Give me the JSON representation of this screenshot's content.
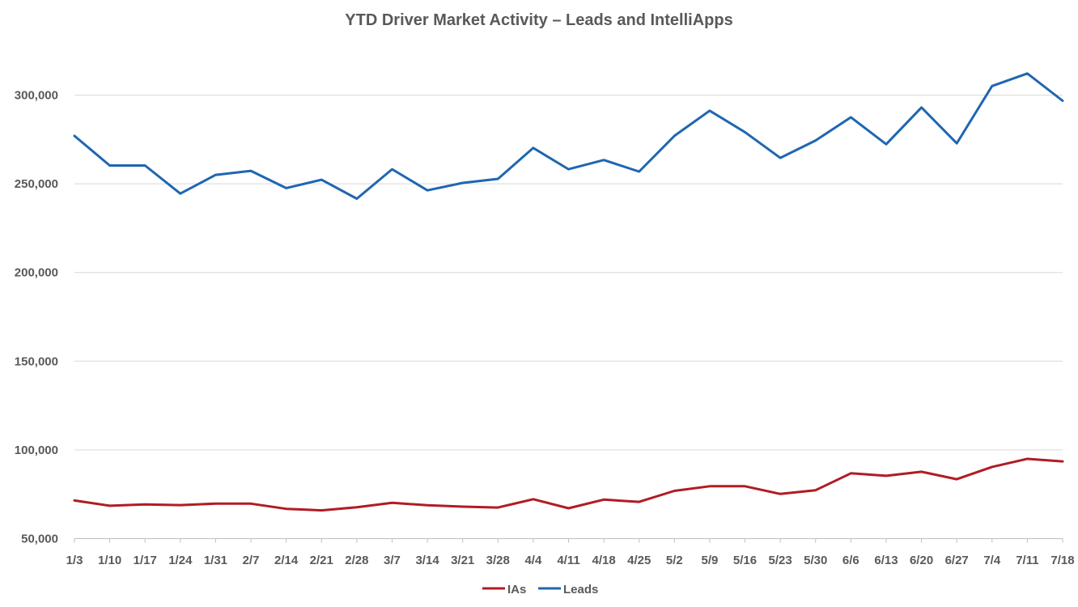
{
  "chart_data": {
    "type": "line",
    "title": "YTD Driver Market Activity – Leads and IntelliApps",
    "xlabel": "",
    "ylabel": "",
    "ylim": [
      50000,
      325000
    ],
    "yticks": [
      50000,
      100000,
      150000,
      200000,
      250000,
      300000
    ],
    "ytick_labels": [
      "50,000",
      "100,000",
      "150,000",
      "200,000",
      "250,000",
      "300,000"
    ],
    "grid": "horizontal",
    "legend_position": "bottom",
    "categories": [
      "1/3",
      "1/10",
      "1/17",
      "1/24",
      "1/31",
      "2/7",
      "2/14",
      "2/21",
      "2/28",
      "3/7",
      "3/14",
      "3/21",
      "3/28",
      "4/4",
      "4/11",
      "4/18",
      "4/25",
      "5/2",
      "5/9",
      "5/16",
      "5/23",
      "5/30",
      "6/6",
      "6/13",
      "6/20",
      "6/27",
      "7/4",
      "7/11",
      "7/18"
    ],
    "series": [
      {
        "name": "IAs",
        "color": "#b01c23",
        "values": [
          71500,
          68500,
          69300,
          68900,
          69700,
          69700,
          66800,
          65900,
          67700,
          70200,
          68800,
          68000,
          67500,
          72200,
          67100,
          72000,
          70700,
          76900,
          79500,
          79500,
          75200,
          77300,
          86800,
          85400,
          87700,
          83500,
          90400,
          95000,
          93500
        ]
      },
      {
        "name": "Leads",
        "color": "#1f66b1",
        "values": [
          277000,
          260300,
          260300,
          244500,
          255000,
          257300,
          247600,
          252300,
          241600,
          258200,
          246300,
          250500,
          252800,
          270200,
          258200,
          263400,
          256900,
          277000,
          291200,
          279100,
          264600,
          274400,
          287500,
          272300,
          293000,
          272800,
          305100,
          312200,
          296800
        ]
      }
    ]
  }
}
